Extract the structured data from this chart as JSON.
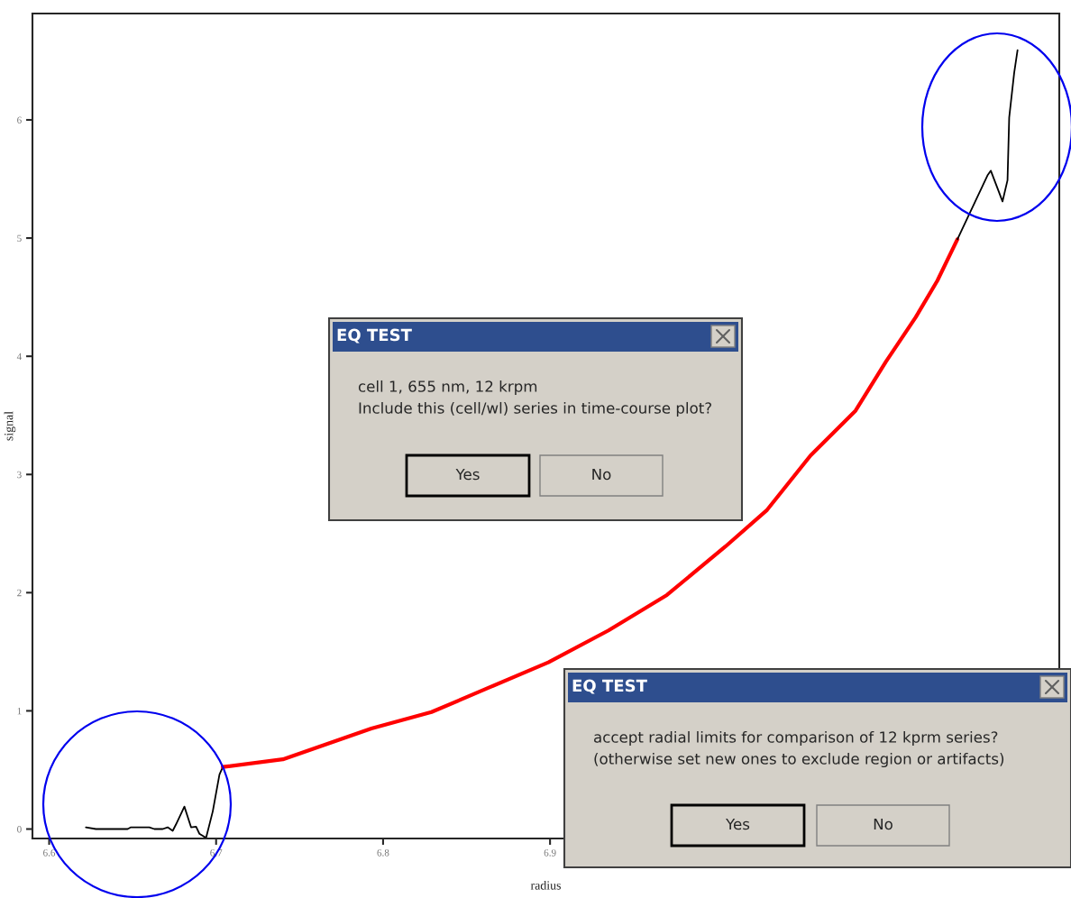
{
  "chart_data": {
    "type": "line",
    "xlabel": "radius",
    "ylabel": "signal",
    "series": [
      {
        "color": "#000000",
        "x": [
          6.622,
          6.628,
          6.647,
          6.649,
          6.66,
          6.663,
          6.668,
          6.671,
          6.674,
          6.676,
          6.681,
          6.685,
          6.688,
          6.69,
          6.694,
          6.698,
          6.702,
          6.704
        ],
        "values": [
          0.015,
          0,
          0,
          0.015,
          0.015,
          0,
          0,
          0.015,
          -0.015,
          0.04,
          0.19,
          0.015,
          0.02,
          -0.04,
          -0.075,
          0.15,
          0.46,
          0.525
        ]
      },
      {
        "color": "#ff0000",
        "x": [
          6.704,
          6.74,
          6.793,
          6.829,
          6.864,
          6.899,
          6.935,
          6.97,
          7.005,
          7.03,
          7.056,
          7.083,
          7.101,
          7.119,
          7.132,
          7.144
        ],
        "values": [
          0.525,
          0.59,
          0.85,
          0.99,
          1.2,
          1.41,
          1.68,
          1.98,
          2.39,
          2.7,
          3.16,
          3.54,
          3.95,
          4.33,
          4.64,
          4.99
        ]
      },
      {
        "color": "#000000",
        "x": [
          7.144,
          7.162,
          7.164,
          7.171,
          7.174,
          7.175,
          7.178,
          7.18
        ],
        "values": [
          4.99,
          5.53,
          5.57,
          5.31,
          5.49,
          6.02,
          6.4,
          6.59
        ]
      }
    ],
    "xlim": [
      6.59,
      7.205
    ],
    "ylim": [
      -0.08,
      6.9
    ],
    "xticks": [
      6.6,
      6.7,
      6.8,
      6.9
    ],
    "yticks": [
      0,
      1,
      2,
      3,
      4,
      5,
      6
    ],
    "grid": false,
    "marker": "none",
    "line_style": "solid",
    "annotations": [
      "EQ TEST",
      "cell 1, 655 nm, 12 krpm",
      "Include this (cell/wl) series in time-course plot?",
      "Yes",
      "No",
      "EQ TEST",
      "accept radial limits for comparison of 12 kprm series?",
      "(otherwise set new ones to exclude region or artifacts)",
      "Yes",
      "No"
    ]
  }
}
